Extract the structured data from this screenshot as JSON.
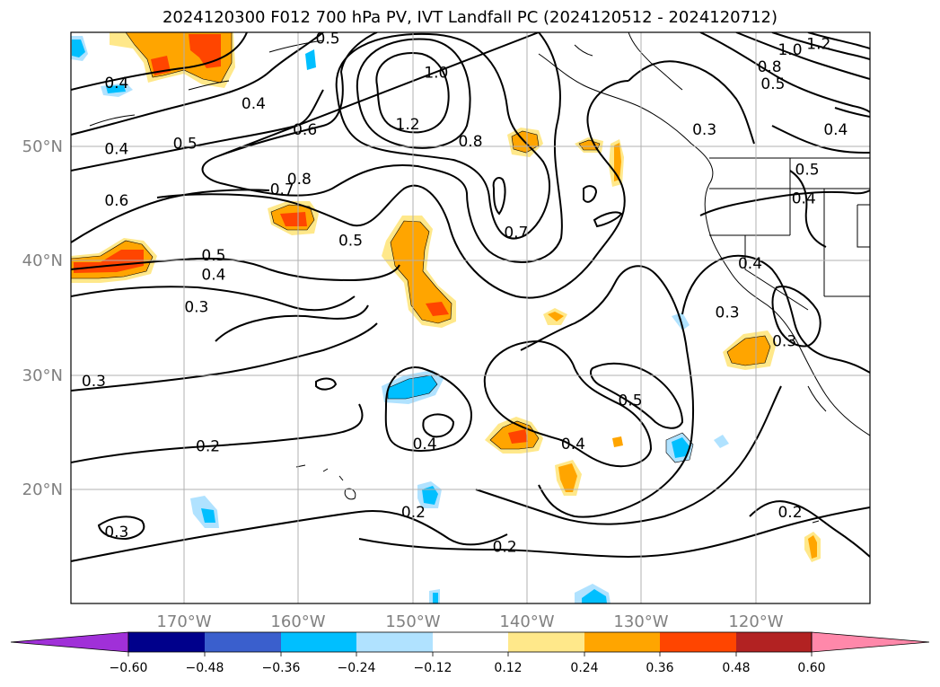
{
  "title": "2024120300 F012 700 hPa PV, IVT Landfall PC (2024120512 - 2024120712)",
  "map": {
    "lon_range": [
      -180,
      -110
    ],
    "lat_range": [
      10,
      60
    ],
    "gridlines": true,
    "lon_ticks": [
      {
        "value": -170,
        "label": "170°W"
      },
      {
        "value": -160,
        "label": "160°W"
      },
      {
        "value": -150,
        "label": "150°W"
      },
      {
        "value": -140,
        "label": "140°W"
      },
      {
        "value": -130,
        "label": "130°W"
      },
      {
        "value": -120,
        "label": "120°W"
      }
    ],
    "lat_ticks": [
      {
        "value": 20,
        "label": "20°N"
      },
      {
        "value": 30,
        "label": "30°N"
      },
      {
        "value": 40,
        "label": "40°N"
      },
      {
        "value": 50,
        "label": "50°N"
      }
    ],
    "contour_labels": [
      {
        "text": "1.0",
        "lon": -148.0,
        "lat": 56.5
      },
      {
        "text": "1.2",
        "lon": -150.5,
        "lat": 52.0
      },
      {
        "text": "0.8",
        "lon": -145.0,
        "lat": 50.5
      },
      {
        "text": "0.6",
        "lon": -159.5,
        "lat": 51.5
      },
      {
        "text": "0.8",
        "lon": -160.0,
        "lat": 47.2
      },
      {
        "text": "0.7",
        "lon": -161.5,
        "lat": 46.3
      },
      {
        "text": "0.5",
        "lon": -155.5,
        "lat": 41.8
      },
      {
        "text": "0.7",
        "lon": -141.0,
        "lat": 42.5
      },
      {
        "text": "0.4",
        "lon": -176.0,
        "lat": 55.6
      },
      {
        "text": "0.4",
        "lon": -164.0,
        "lat": 53.8
      },
      {
        "text": "0.5",
        "lon": -170.0,
        "lat": 50.3
      },
      {
        "text": "0.4",
        "lon": -176.0,
        "lat": 49.8
      },
      {
        "text": "0.6",
        "lon": -176.0,
        "lat": 45.3
      },
      {
        "text": "0.5",
        "lon": -167.5,
        "lat": 40.5
      },
      {
        "text": "0.4",
        "lon": -167.5,
        "lat": 38.8
      },
      {
        "text": "0.3",
        "lon": -169.0,
        "lat": 36.0
      },
      {
        "text": "0.3",
        "lon": -178.0,
        "lat": 29.5
      },
      {
        "text": "0.2",
        "lon": -168.0,
        "lat": 23.8
      },
      {
        "text": "0.3",
        "lon": -176.0,
        "lat": 16.3
      },
      {
        "text": "0.4",
        "lon": -149.0,
        "lat": 24.0
      },
      {
        "text": "0.2",
        "lon": -150.0,
        "lat": 18.0
      },
      {
        "text": "0.2",
        "lon": -142.0,
        "lat": 15.0
      },
      {
        "text": "0.4",
        "lon": -136.0,
        "lat": 24.0
      },
      {
        "text": "0.5",
        "lon": -131.0,
        "lat": 27.8
      },
      {
        "text": "0.3",
        "lon": -122.5,
        "lat": 35.5
      },
      {
        "text": "0.4",
        "lon": -120.5,
        "lat": 39.8
      },
      {
        "text": "0.3",
        "lon": -117.5,
        "lat": 33.0
      },
      {
        "text": "0.2",
        "lon": -117.0,
        "lat": 18.0
      },
      {
        "text": "0.3",
        "lon": -124.5,
        "lat": 51.5
      },
      {
        "text": "0.5",
        "lon": -115.5,
        "lat": 48.0
      },
      {
        "text": "0.4",
        "lon": -115.8,
        "lat": 45.5
      },
      {
        "text": "0.4",
        "lon": -113.0,
        "lat": 51.5
      },
      {
        "text": "0.5",
        "lon": -157.5,
        "lat": 59.5
      },
      {
        "text": "0.5",
        "lon": -118.5,
        "lat": 55.5
      },
      {
        "text": "0.8",
        "lon": -118.8,
        "lat": 57.0
      },
      {
        "text": "1.0",
        "lon": -117.0,
        "lat": 58.5
      },
      {
        "text": "1.2",
        "lon": -114.5,
        "lat": 59.0
      }
    ]
  },
  "colorbar": {
    "ticks": [
      "−0.60",
      "−0.48",
      "−0.36",
      "−0.24",
      "−0.12",
      "0.12",
      "0.24",
      "0.36",
      "0.48",
      "0.60"
    ],
    "colors": [
      "#a030d8",
      "#00008b",
      "#3a5fcd",
      "#00bfff",
      "#b0e2ff",
      "#ffffff",
      "#ffe88a",
      "#ffa500",
      "#ff4500",
      "#b22222",
      "#ff88aa"
    ]
  }
}
